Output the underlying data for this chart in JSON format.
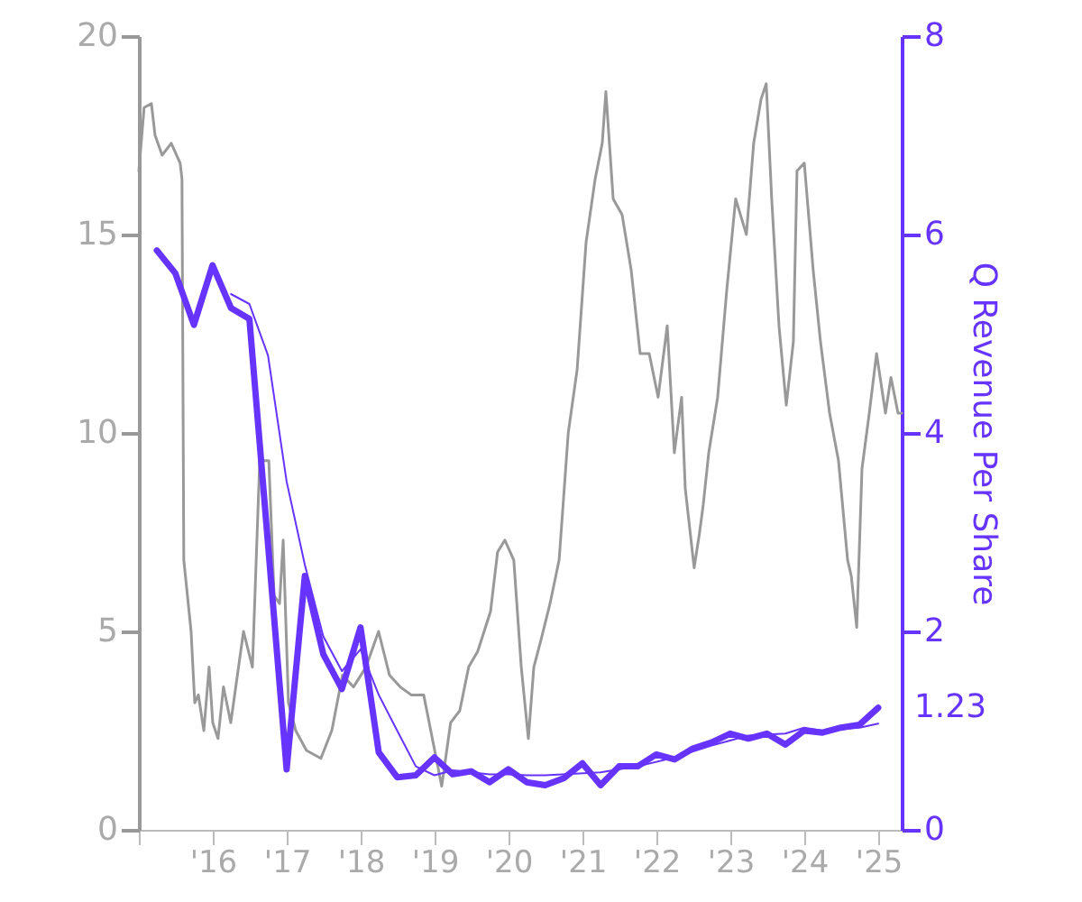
{
  "chart_data": {
    "type": "line",
    "y2label": "Q Revenue Per Share",
    "xlim": [
      "2015-01-01",
      "2025-04-26"
    ],
    "xticks": [
      {
        "value": "2015-01-01",
        "label": null
      },
      {
        "value": "2016-01-01",
        "label": "'16"
      },
      {
        "value": "2017-01-01",
        "label": "'17"
      },
      {
        "value": "2018-01-01",
        "label": "'18"
      },
      {
        "value": "2019-01-01",
        "label": "'19"
      },
      {
        "value": "2020-01-01",
        "label": "'20"
      },
      {
        "value": "2021-01-01",
        "label": "'21"
      },
      {
        "value": "2022-01-01",
        "label": "'22"
      },
      {
        "value": "2023-01-01",
        "label": "'23"
      },
      {
        "value": "2024-01-01",
        "label": "'24"
      },
      {
        "value": "2025-01-01",
        "label": "'25"
      }
    ],
    "ylim": [
      0,
      20
    ],
    "yticks": [
      0,
      5,
      10,
      15,
      20
    ],
    "y2lim": [
      0,
      8
    ],
    "y2ticks": [
      0,
      2,
      4,
      6,
      8
    ],
    "grid": false,
    "series": [
      {
        "color": "#999999",
        "x": [
          "2015-01-01",
          "2015-01-27",
          "2015-03-04",
          "2015-03-22",
          "2015-04-26",
          "2015-06-10",
          "2015-07-24",
          "2015-08-02",
          "2015-08-11",
          "2015-08-29",
          "2015-09-16",
          "2015-10-04",
          "2015-10-22",
          "2015-11-18",
          "2015-12-14",
          "2016-01-01",
          "2016-01-27",
          "2016-02-23",
          "2016-03-30",
          "2016-06-01",
          "2016-07-15",
          "2016-08-20",
          "2016-10-04",
          "2016-10-30",
          "2016-11-26",
          "2016-12-14",
          "2017-01-09",
          "2017-02-14",
          "2017-04-08",
          "2017-06-18",
          "2017-08-11",
          "2017-10-03",
          "2017-11-26",
          "2018-01-27",
          "2018-03-30",
          "2018-05-23",
          "2018-07-15",
          "2018-09-07",
          "2018-11-08",
          "2019-01-09",
          "2019-02-05",
          "2019-03-21",
          "2019-05-05",
          "2019-06-18",
          "2019-08-02",
          "2019-10-04",
          "2019-11-08",
          "2019-12-14",
          "2020-01-27",
          "2020-03-04",
          "2020-04-08",
          "2020-05-05",
          "2020-06-10",
          "2020-07-24",
          "2020-09-07",
          "2020-10-22",
          "2020-12-05",
          "2021-01-18",
          "2021-03-04",
          "2021-04-08",
          "2021-04-26",
          "2021-06-01",
          "2021-07-15",
          "2021-08-29",
          "2021-10-12",
          "2021-11-26",
          "2022-01-09",
          "2022-02-23",
          "2022-03-30",
          "2022-05-05",
          "2022-05-23",
          "2022-07-06",
          "2022-08-02",
          "2022-08-20",
          "2022-09-16",
          "2022-10-30",
          "2022-12-14",
          "2023-01-27",
          "2023-03-21",
          "2023-04-26",
          "2023-06-01",
          "2023-06-27",
          "2023-07-24",
          "2023-08-29",
          "2023-10-04",
          "2023-11-08",
          "2023-11-26",
          "2024-01-01",
          "2024-02-14",
          "2024-03-21",
          "2024-05-05",
          "2024-06-18",
          "2024-08-02",
          "2024-08-20",
          "2024-09-16",
          "2024-10-12",
          "2024-11-17",
          "2024-12-23",
          "2025-02-05",
          "2025-03-04",
          "2025-04-08",
          "2025-04-26"
        ],
        "values": [
          16.6,
          18.2,
          18.3,
          17.5,
          17.0,
          17.3,
          16.8,
          16.4,
          6.8,
          5.9,
          5.0,
          3.2,
          3.4,
          2.5,
          4.1,
          2.7,
          2.3,
          3.6,
          2.7,
          5.0,
          4.1,
          9.3,
          9.3,
          5.9,
          5.7,
          7.3,
          3.2,
          2.5,
          2.0,
          1.8,
          2.5,
          3.9,
          3.6,
          4.1,
          5.0,
          3.9,
          3.6,
          3.4,
          3.4,
          1.8,
          1.1,
          2.7,
          3.0,
          4.1,
          4.5,
          5.5,
          7.0,
          7.3,
          6.8,
          4.1,
          2.3,
          4.1,
          4.8,
          5.7,
          6.8,
          10.0,
          11.6,
          14.8,
          16.4,
          17.3,
          18.6,
          15.9,
          15.5,
          14.1,
          12.0,
          12.0,
          10.9,
          12.7,
          9.5,
          10.9,
          8.6,
          6.6,
          7.5,
          8.2,
          9.5,
          10.9,
          13.6,
          15.9,
          15.0,
          17.3,
          18.4,
          18.8,
          15.9,
          12.7,
          10.7,
          12.3,
          16.6,
          16.8,
          14.1,
          12.3,
          10.5,
          9.3,
          6.8,
          6.4,
          5.1,
          9.1,
          10.5,
          12.0,
          10.5,
          11.4,
          10.5,
          10.5
        ]
      },
      {
        "color": "#6633ff",
        "axis": "y2",
        "x": [
          "2015-03-31",
          "2015-06-30",
          "2015-09-30",
          "2015-12-31",
          "2016-03-31",
          "2016-06-30",
          "2016-12-31",
          "2017-03-31",
          "2017-06-30",
          "2017-09-30",
          "2017-12-31",
          "2018-03-31",
          "2018-06-30",
          "2018-09-30",
          "2018-12-31",
          "2019-03-31",
          "2019-06-30",
          "2019-09-30",
          "2019-12-31",
          "2020-03-31",
          "2020-06-30",
          "2020-09-30",
          "2020-12-31",
          "2021-03-31",
          "2021-06-30",
          "2021-09-30",
          "2021-12-31",
          "2022-03-31",
          "2022-06-30",
          "2022-09-30",
          "2022-12-31",
          "2023-03-31",
          "2023-06-30",
          "2023-09-30",
          "2023-12-31",
          "2024-03-31",
          "2024-06-30",
          "2024-09-30",
          "2024-12-31"
        ],
        "values": [
          5.84,
          5.61,
          5.09,
          5.69,
          5.26,
          5.15,
          0.61,
          2.56,
          1.77,
          1.42,
          2.04,
          0.78,
          0.53,
          0.55,
          0.73,
          0.56,
          0.59,
          0.48,
          0.61,
          0.48,
          0.45,
          0.52,
          0.67,
          0.45,
          0.64,
          0.64,
          0.76,
          0.71,
          0.82,
          0.88,
          0.97,
          0.92,
          0.97,
          0.86,
          1.0,
          0.98,
          1.03,
          1.06,
          1.23
        ],
        "value_labels": [
          null,
          null,
          null,
          null,
          null,
          null,
          null,
          null,
          null,
          null,
          null,
          null,
          null,
          null,
          null,
          null,
          null,
          null,
          null,
          null,
          null,
          null,
          null,
          null,
          null,
          null,
          null,
          null,
          null,
          null,
          null,
          null,
          null,
          null,
          null,
          null,
          null,
          null,
          "1.23"
        ]
      },
      {
        "type": "line",
        "color": "#6633ff",
        "axis": "y2",
        "x": [
          "2016-03-31",
          "2016-06-30",
          "2016-09-30",
          "2016-12-31",
          "2017-03-31",
          "2017-06-30",
          "2017-09-30",
          "2017-12-31",
          "2018-03-31",
          "2018-06-30",
          "2018-09-30",
          "2018-12-31",
          "2019-03-31",
          "2019-06-30",
          "2019-09-30",
          "2019-12-31",
          "2020-03-31",
          "2020-06-30",
          "2021-03-31",
          "2021-09-30",
          "2022-03-31",
          "2022-09-30",
          "2023-03-31",
          "2023-09-30",
          "2023-12-31",
          "2024-03-31",
          "2024-09-30",
          "2024-12-31"
        ],
        "values": [
          5.4,
          5.3,
          4.78,
          3.51,
          2.67,
          1.95,
          1.6,
          1.82,
          1.36,
          1.0,
          0.64,
          0.55,
          0.6,
          0.58,
          0.56,
          0.56,
          0.55,
          0.55,
          0.58,
          0.64,
          0.73,
          0.85,
          0.95,
          0.97,
          1.03,
          1.0,
          1.03,
          1.07
        ]
      }
    ]
  }
}
